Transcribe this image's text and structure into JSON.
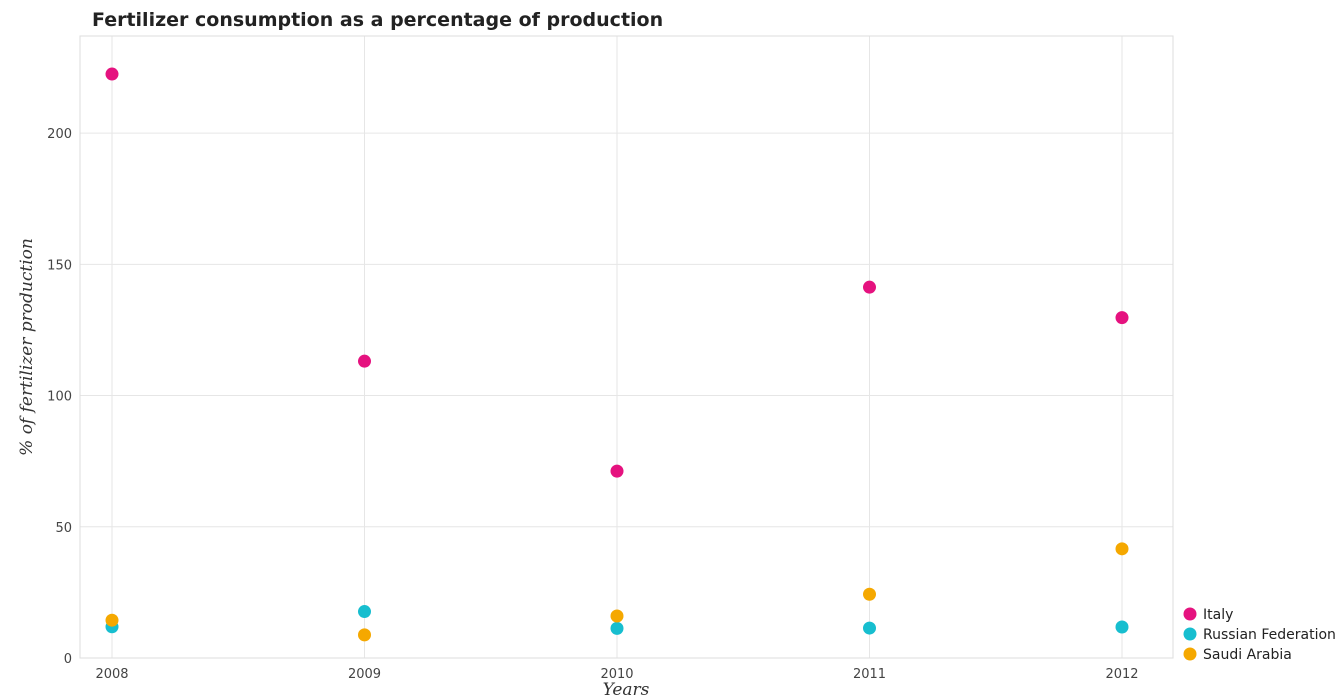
{
  "chart_data": {
    "type": "scatter",
    "title": "Fertilizer consumption as a percentage of production",
    "xlabel": "Years",
    "ylabel": "% of fertilizer production",
    "categories": [
      "2008",
      "2009",
      "2010",
      "2011",
      "2012"
    ],
    "ylim": [
      0,
      237
    ],
    "yticks": [
      "0",
      "50",
      "100",
      "150",
      "200"
    ],
    "grid": true,
    "legend_position": "bottom-right",
    "series": [
      {
        "name": "Italy",
        "color": "#e5127f",
        "values": [
          222.5,
          113.1,
          71.2,
          141.3,
          129.7
        ]
      },
      {
        "name": "Russian Federation",
        "color": "#17becf",
        "values": [
          11.9,
          17.7,
          11.3,
          11.4,
          11.8
        ]
      },
      {
        "name": "Saudi Arabia",
        "color": "#f5a800",
        "values": [
          14.4,
          8.8,
          16.0,
          24.3,
          41.6
        ]
      }
    ]
  }
}
